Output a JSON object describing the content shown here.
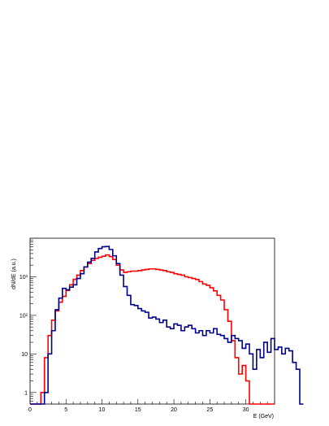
{
  "chart_data": {
    "type": "line",
    "xlabel": "E (GeV)",
    "ylabel": "dN/dE (a.u.)",
    "xlim": [
      0,
      34
    ],
    "ylim_log10": [
      -0.3,
      4.0
    ],
    "yscale": "log",
    "xticks": [
      0,
      5,
      10,
      15,
      20,
      25,
      30
    ],
    "yticks": [
      {
        "value": 1,
        "label": "1"
      },
      {
        "value": 10,
        "label": "10"
      },
      {
        "value": 100,
        "label": "10²"
      },
      {
        "value": 1000,
        "label": "10³"
      }
    ],
    "grid": false,
    "series": [
      {
        "color": "#ff0000",
        "bin_start": 0,
        "bin_width": 0.5,
        "values": [
          0,
          0,
          0,
          1,
          8,
          30,
          75,
          130,
          220,
          310,
          440,
          620,
          860,
          1100,
          1450,
          1800,
          2200,
          2650,
          3000,
          3200,
          3400,
          3700,
          3350,
          2800,
          2000,
          1500,
          1300,
          1350,
          1400,
          1400,
          1450,
          1500,
          1550,
          1600,
          1600,
          1550,
          1500,
          1450,
          1350,
          1300,
          1200,
          1150,
          1100,
          1000,
          950,
          900,
          850,
          750,
          650,
          600,
          520,
          430,
          330,
          250,
          140,
          70,
          22,
          8,
          3,
          5,
          2,
          0,
          0,
          0,
          0,
          0,
          0,
          0
        ]
      },
      {
        "color": "#00008b",
        "bin_start": 0,
        "bin_width": 0.5,
        "values": [
          0,
          0,
          0,
          0,
          1,
          10,
          40,
          140,
          280,
          500,
          460,
          540,
          620,
          900,
          1200,
          1800,
          2400,
          3000,
          4400,
          5400,
          6000,
          6100,
          5100,
          3500,
          2200,
          1100,
          560,
          330,
          190,
          180,
          150,
          130,
          120,
          85,
          90,
          80,
          65,
          75,
          50,
          45,
          60,
          55,
          40,
          50,
          55,
          45,
          35,
          40,
          30,
          40,
          35,
          45,
          32,
          30,
          25,
          20,
          30,
          25,
          22,
          14,
          18,
          10,
          4,
          13,
          8,
          20,
          11,
          25,
          13,
          15,
          10,
          14,
          12,
          6,
          4,
          0
        ]
      }
    ]
  }
}
